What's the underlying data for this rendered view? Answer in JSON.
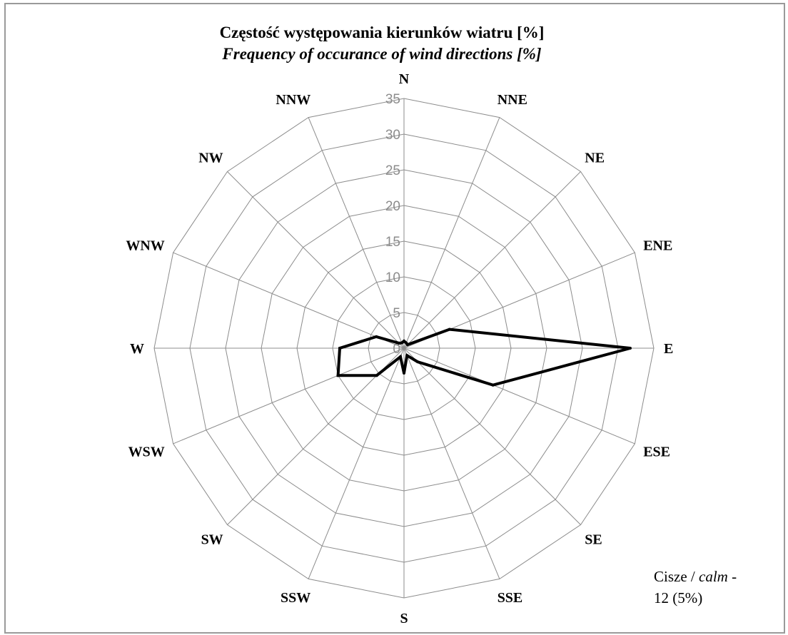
{
  "chart_data": {
    "type": "radar",
    "title": "Częstość występowania kierunków wiatru [%]",
    "subtitle": "Frequency of occurance of wind directions [%]",
    "categories": [
      "N",
      "NNE",
      "NE",
      "ENE",
      "E",
      "ESE",
      "SE",
      "SSE",
      "S",
      "SSW",
      "SW",
      "WSW",
      "W",
      "WNW",
      "NW",
      "NNW"
    ],
    "values": [
      1.0,
      0.8,
      0.7,
      6.9,
      31.7,
      13.5,
      2.7,
      1.1,
      3.5,
      1.3,
      5.4,
      10.0,
      9.0,
      4.2,
      1.0,
      0.8
    ],
    "r_axis": {
      "min": 0,
      "max": 35,
      "ticks": [
        0,
        5,
        10,
        15,
        20,
        25,
        30,
        35
      ]
    },
    "grid": true,
    "legend": "none",
    "colors": {
      "series": "#000000",
      "grid": "#8c8c8c",
      "tick_label": "#8c8c8c"
    }
  },
  "calm_note": {
    "prefix": "Cisze / ",
    "calm_word": "calm",
    "suffix": " -",
    "value": "12 (5%)"
  }
}
